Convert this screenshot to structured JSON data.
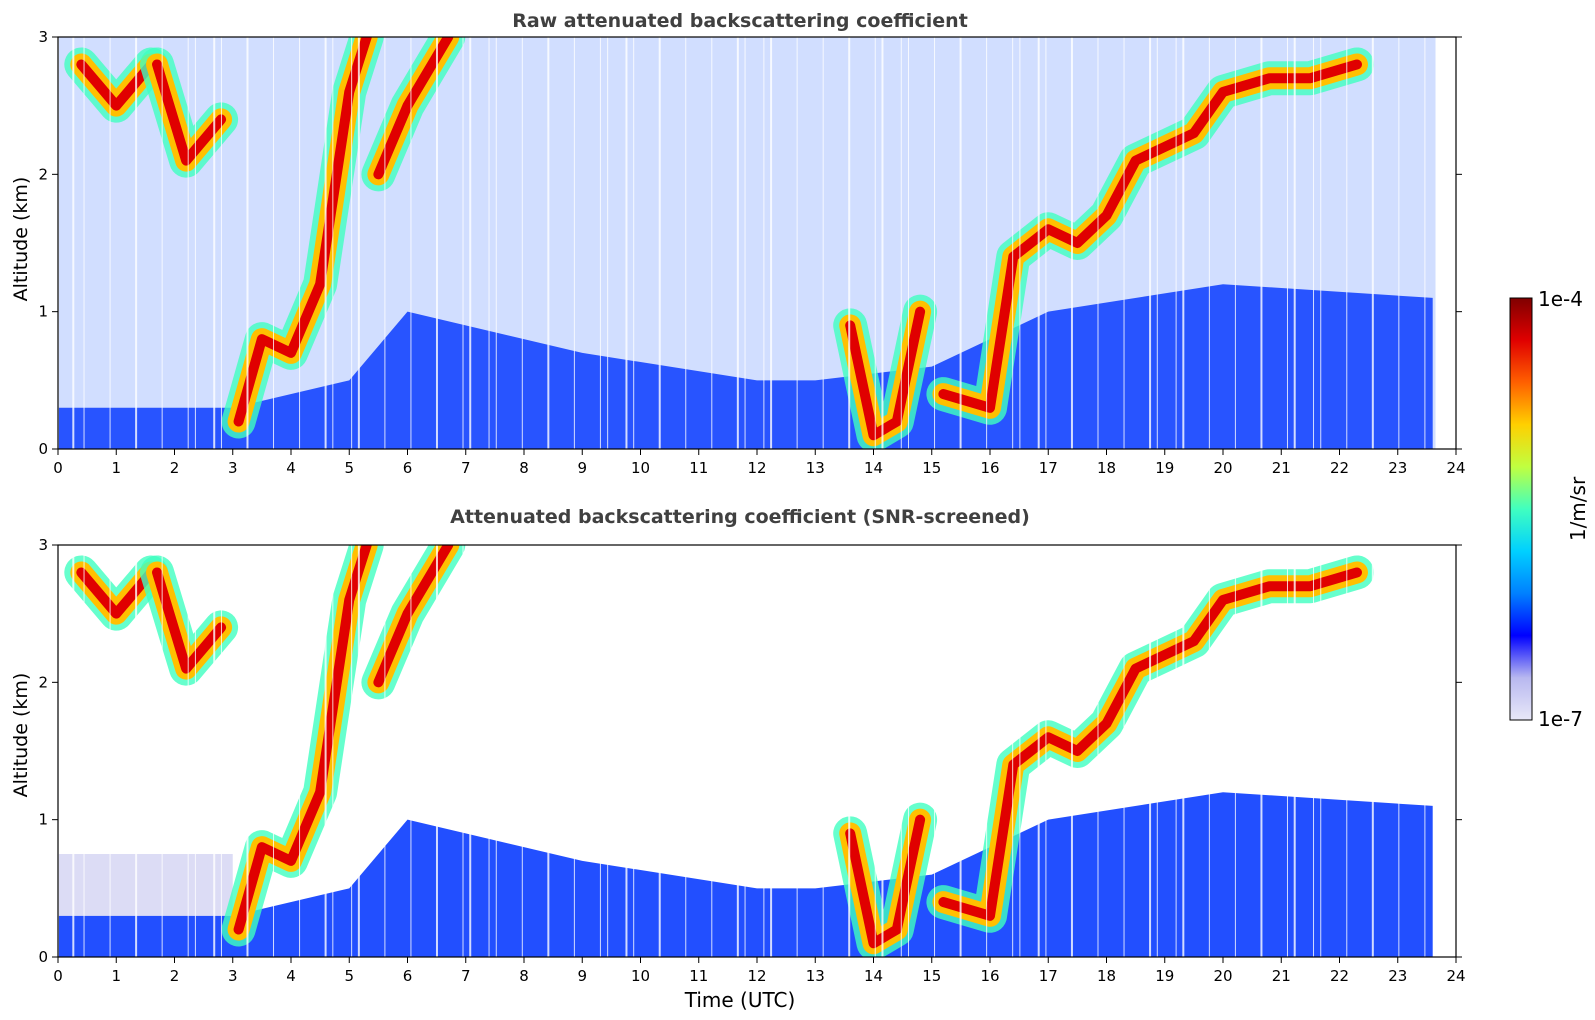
{
  "chart_data": [
    {
      "type": "heatmap",
      "title": "Raw attenuated backscattering coefficient",
      "xlabel": "",
      "ylabel": "Altitude (km)",
      "xlim": [
        0,
        24
      ],
      "ylim": [
        0,
        3
      ],
      "xticks": [
        "0",
        "1",
        "2",
        "3",
        "4",
        "5",
        "6",
        "7",
        "8",
        "9",
        "10",
        "11",
        "12",
        "13",
        "14",
        "15",
        "16",
        "17",
        "18",
        "19",
        "20",
        "21",
        "22",
        "23",
        "24"
      ],
      "yticks": [
        "0",
        "1",
        "2",
        "3"
      ],
      "data_end_time": 23.65,
      "grid": false
    },
    {
      "type": "heatmap",
      "title": "Attenuated backscattering coefficient (SNR-screened)",
      "xlabel": "Time (UTC)",
      "ylabel": "Altitude (km)",
      "xlim": [
        0,
        24
      ],
      "ylim": [
        0,
        3
      ],
      "xticks": [
        "0",
        "1",
        "2",
        "3",
        "4",
        "5",
        "6",
        "7",
        "8",
        "9",
        "10",
        "11",
        "12",
        "13",
        "14",
        "15",
        "16",
        "17",
        "18",
        "19",
        "20",
        "21",
        "22",
        "23",
        "24"
      ],
      "yticks": [
        "0",
        "1",
        "2",
        "3"
      ],
      "data_end_time": 23.65,
      "grid": false
    }
  ],
  "colorbar": {
    "label": "1/m/sr",
    "max_label": "1e-4",
    "min_label": "1e-7",
    "scale": "log",
    "colormap": "jet",
    "colors": [
      "#e8e8f8",
      "#b8b8f0",
      "#0000ff",
      "#0080ff",
      "#00d0ff",
      "#40ffc0",
      "#c0ff40",
      "#ffd000",
      "#ff6000",
      "#e00000",
      "#800000"
    ]
  },
  "features": {
    "cloud_layers": [
      [
        [
          0.4,
          2.8
        ],
        [
          1.0,
          2.5
        ],
        [
          1.6,
          2.8
        ]
      ],
      [
        [
          1.7,
          2.8
        ],
        [
          2.2,
          2.1
        ],
        [
          2.8,
          2.4
        ]
      ],
      [
        [
          3.1,
          0.2
        ],
        [
          3.5,
          0.8
        ],
        [
          4.0,
          0.7
        ],
        [
          4.5,
          1.2
        ],
        [
          5.0,
          2.6
        ],
        [
          5.3,
          3.0
        ]
      ],
      [
        [
          5.5,
          2.0
        ],
        [
          6.0,
          2.5
        ],
        [
          6.7,
          3.0
        ]
      ],
      [
        [
          13.6,
          0.9
        ],
        [
          14.0,
          0.1
        ],
        [
          14.4,
          0.2
        ],
        [
          14.8,
          1.0
        ]
      ],
      [
        [
          15.2,
          0.4
        ],
        [
          16.0,
          0.3
        ],
        [
          16.4,
          1.4
        ],
        [
          17.0,
          1.6
        ],
        [
          17.5,
          1.5
        ],
        [
          18.0,
          1.7
        ],
        [
          18.5,
          2.1
        ],
        [
          19.0,
          2.2
        ],
        [
          19.5,
          2.3
        ],
        [
          20.0,
          2.6
        ],
        [
          20.8,
          2.7
        ],
        [
          21.5,
          2.7
        ],
        [
          22.3,
          2.8
        ]
      ]
    ],
    "boundary_layer_top_km": [
      [
        0,
        0.3
      ],
      [
        3,
        0.3
      ],
      [
        5,
        0.5
      ],
      [
        6,
        1.0
      ],
      [
        9,
        0.7
      ],
      [
        12,
        0.5
      ],
      [
        13,
        0.5
      ],
      [
        15,
        0.6
      ],
      [
        17,
        1.0
      ],
      [
        20,
        1.2
      ],
      [
        23.6,
        1.1
      ]
    ]
  }
}
